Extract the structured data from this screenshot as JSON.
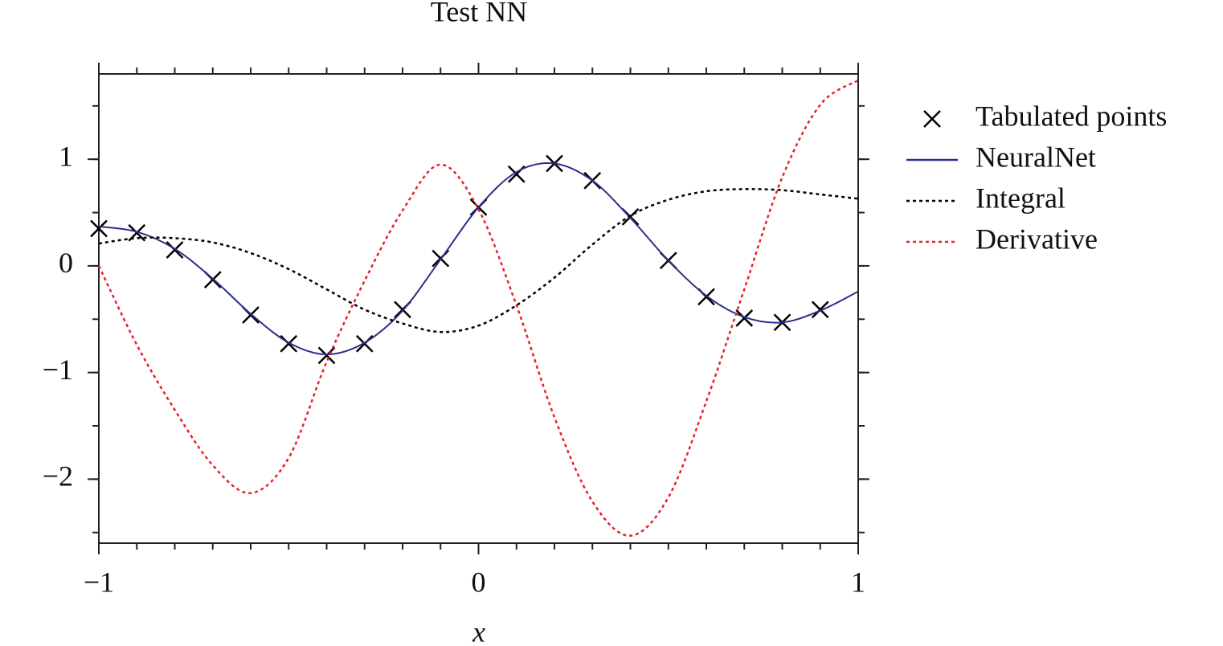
{
  "chart_data": {
    "type": "line",
    "title": "Test NN",
    "xlabel": "x",
    "xlim": [
      -1,
      1
    ],
    "ylim": [
      -2.6,
      1.8
    ],
    "xticks": [
      {
        "value": -1,
        "label": "−1"
      },
      0,
      1
    ],
    "yticks": [
      {
        "value": -2,
        "label": "−2"
      },
      {
        "value": -1,
        "label": "−1"
      },
      0,
      1
    ],
    "legend": "outside right",
    "series": [
      {
        "name": "Tabulated points",
        "type": "scatter",
        "marker": "x",
        "color": "#000000",
        "x": [
          -1,
          -0.9,
          -0.8,
          -0.7,
          -0.6,
          -0.5,
          -0.4,
          -0.3,
          -0.2,
          -0.1,
          0,
          0.1,
          0.2,
          0.3,
          0.4,
          0.5,
          0.6,
          0.7,
          0.8,
          0.9
        ],
        "values": [
          0.35,
          0.31,
          0.15,
          -0.13,
          -0.46,
          -0.73,
          -0.84,
          -0.73,
          -0.41,
          0.07,
          0.55,
          0.86,
          0.96,
          0.8,
          0.46,
          0.05,
          -0.29,
          -0.49,
          -0.53,
          -0.41
        ]
      },
      {
        "name": "NeuralNet",
        "type": "line",
        "style": "solid",
        "color": "#2b2f8f",
        "x": [
          -1,
          -0.9,
          -0.8,
          -0.7,
          -0.6,
          -0.5,
          -0.4,
          -0.3,
          -0.2,
          -0.1,
          0,
          0.1,
          0.2,
          0.3,
          0.4,
          0.5,
          0.6,
          0.7,
          0.8,
          0.9,
          1
        ],
        "values": [
          0.37,
          0.32,
          0.16,
          -0.12,
          -0.45,
          -0.72,
          -0.83,
          -0.72,
          -0.42,
          0.06,
          0.55,
          0.88,
          0.96,
          0.8,
          0.45,
          0.05,
          -0.28,
          -0.48,
          -0.53,
          -0.42,
          -0.24
        ]
      },
      {
        "name": "Integral",
        "type": "line",
        "style": "dotted",
        "color": "#000000",
        "x": [
          -1,
          -0.9,
          -0.8,
          -0.7,
          -0.6,
          -0.5,
          -0.4,
          -0.3,
          -0.2,
          -0.1,
          0,
          0.1,
          0.2,
          0.3,
          0.4,
          0.5,
          0.6,
          0.7,
          0.8,
          0.9,
          1
        ],
        "values": [
          0.21,
          0.26,
          0.26,
          0.22,
          0.12,
          -0.03,
          -0.22,
          -0.41,
          -0.54,
          -0.62,
          -0.56,
          -0.37,
          -0.11,
          0.2,
          0.47,
          0.62,
          0.7,
          0.72,
          0.71,
          0.67,
          0.63
        ]
      },
      {
        "name": "Derivative",
        "type": "line",
        "style": "dotted",
        "color": "#e8202a",
        "x": [
          -1,
          -0.9,
          -0.8,
          -0.7,
          -0.6,
          -0.5,
          -0.4,
          -0.3,
          -0.2,
          -0.1,
          0,
          0.1,
          0.2,
          0.3,
          0.4,
          0.5,
          0.6,
          0.7,
          0.8,
          0.9,
          1
        ],
        "values": [
          0,
          -0.74,
          -1.35,
          -1.87,
          -2.13,
          -1.8,
          -0.9,
          -0.14,
          0.52,
          0.95,
          0.53,
          -0.37,
          -1.42,
          -2.21,
          -2.53,
          -2.17,
          -1.27,
          -0.22,
          0.83,
          1.51,
          1.74
        ]
      }
    ]
  }
}
